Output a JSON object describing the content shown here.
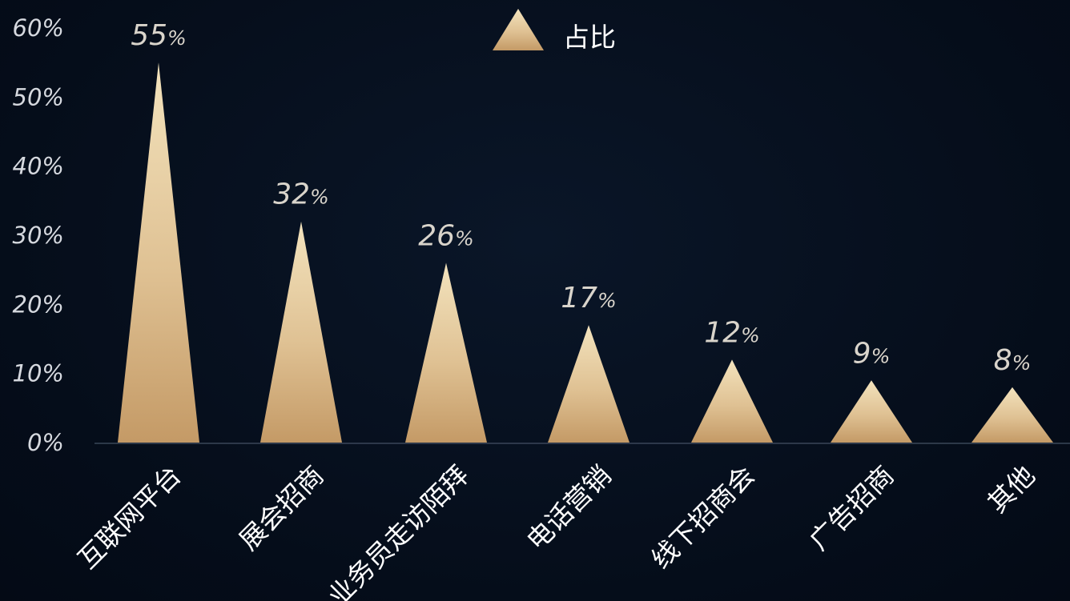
{
  "chart_data": {
    "type": "bar",
    "mark_shape": "triangle",
    "categories": [
      "互联网平台",
      "展会招商",
      "业务员走访陌拜",
      "电话营销",
      "线下招商会",
      "广告招商",
      "其他"
    ],
    "series": [
      {
        "name": "占比",
        "values": [
          55,
          32,
          26,
          17,
          12,
          9,
          8
        ],
        "data_labels": [
          "55",
          "32",
          "26",
          "17",
          "12",
          "9",
          "8"
        ]
      }
    ],
    "value_suffix": "%",
    "ylim": [
      0,
      60
    ],
    "yticks": [
      "0%",
      "10%",
      "20%",
      "30%",
      "40%",
      "50%",
      "60%"
    ],
    "grid": false,
    "legend_position": "top-center",
    "colors": {
      "background": "#050d1a",
      "mark_top": "#f3e3bd",
      "mark_bottom": "#c49a66",
      "axis_line": "#3a4658"
    }
  }
}
